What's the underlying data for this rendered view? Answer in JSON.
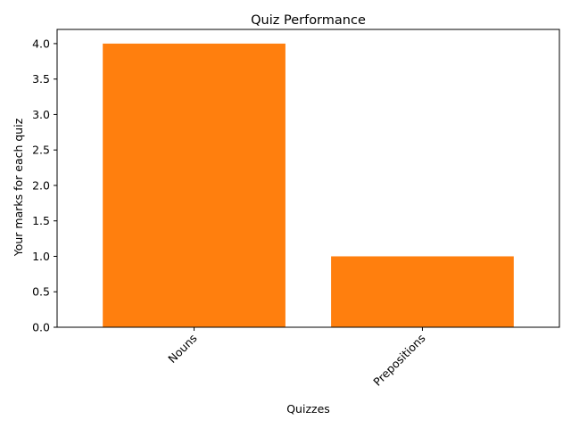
{
  "chart_data": {
    "type": "bar",
    "title": "Quiz Performance",
    "xlabel": "Quizzes",
    "ylabel": "Your marks for each quiz",
    "categories": [
      "Nouns",
      "Prepositions"
    ],
    "values": [
      4,
      1
    ],
    "ylim": [
      0,
      4.2
    ],
    "yticks": [
      "0.0",
      "0.5",
      "1.0",
      "1.5",
      "2.0",
      "2.5",
      "3.0",
      "3.5",
      "4.0"
    ],
    "xtick_rotation_deg": 45,
    "grid": false,
    "legend": "none",
    "bar_color": "#ff7f0e"
  }
}
